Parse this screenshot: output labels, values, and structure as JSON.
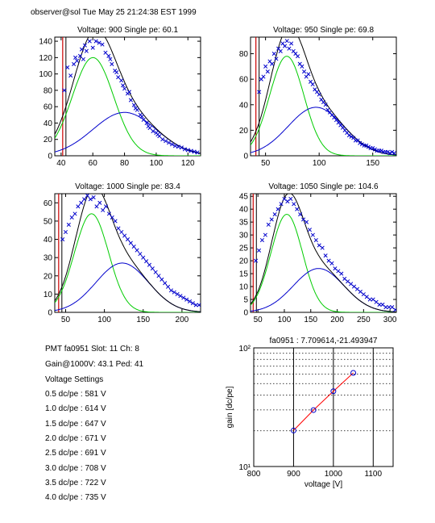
{
  "header": "observer@sol  Tue May 25 21:24:38 EST 1999",
  "colors": {
    "data": "#0000cc",
    "fit_total": "#000000",
    "fit_single": "#00cc00",
    "fit_double": "#0000cc",
    "pedestal": "#cc0000",
    "gain_line": "#ff0000",
    "gain_marker": "#0000cc"
  },
  "info": {
    "pmt_line": "PMT fa0951 Slot: 11 Ch: 8",
    "gain_line": "Gain@1000V: 43.1 Ped: 41",
    "settings_title": "Voltage Settings",
    "settings": [
      "0.5 dc/pe : 581 V",
      "1.0 dc/pe : 614 V",
      "1.5 dc/pe : 647 V",
      "2.0 dc/pe : 671 V",
      "2.5 dc/pe : 691 V",
      "3.0 dc/pe : 708 V",
      "3.5 dc/pe : 722 V",
      "4.0 dc/pe : 735 V"
    ]
  },
  "chart_data": [
    {
      "type": "scatter",
      "title": "Voltage: 900 Single pe: 60.1",
      "xlim": [
        36,
        128
      ],
      "ylim": [
        0,
        145
      ],
      "xticks": [
        40,
        60,
        80,
        100,
        120
      ],
      "yticks": [
        0,
        20,
        40,
        60,
        80,
        100,
        120,
        140
      ],
      "pedestal_x": 41,
      "fits": {
        "single": {
          "amp": 120,
          "mu": 60.1,
          "sigma": 13
        },
        "double": {
          "amp": 53,
          "mu": 80,
          "sigma": 20
        }
      },
      "series": [
        {
          "values": [
            [
              42,
              80
            ],
            [
              44,
              108
            ],
            [
              46,
              98
            ],
            [
              48,
              112
            ],
            [
              49,
              120
            ],
            [
              50,
              116
            ],
            [
              52,
              122
            ],
            [
              53,
              130
            ],
            [
              54,
              118
            ],
            [
              55,
              135
            ],
            [
              56,
              128
            ],
            [
              58,
              140
            ],
            [
              60,
              132
            ],
            [
              62,
              140
            ],
            [
              64,
              138
            ],
            [
              66,
              136
            ],
            [
              68,
              126
            ],
            [
              70,
              122
            ],
            [
              71,
              118
            ],
            [
              72,
              112
            ],
            [
              74,
              104
            ],
            [
              75,
              102
            ],
            [
              76,
              96
            ],
            [
              78,
              92
            ],
            [
              79,
              86
            ],
            [
              80,
              82
            ],
            [
              82,
              76
            ],
            [
              83,
              78
            ],
            [
              84,
              68
            ],
            [
              86,
              62
            ],
            [
              87,
              58
            ],
            [
              88,
              56
            ],
            [
              90,
              50
            ],
            [
              91,
              48
            ],
            [
              92,
              44
            ],
            [
              94,
              40
            ],
            [
              95,
              36
            ],
            [
              96,
              34
            ],
            [
              98,
              30
            ],
            [
              100,
              28
            ],
            [
              101,
              26
            ],
            [
              102,
              24
            ],
            [
              104,
              20
            ],
            [
              106,
              18
            ],
            [
              108,
              16
            ],
            [
              110,
              14
            ],
            [
              112,
              12
            ],
            [
              114,
              11
            ],
            [
              116,
              10
            ],
            [
              118,
              8
            ],
            [
              120,
              7
            ],
            [
              122,
              6
            ],
            [
              124,
              5
            ],
            [
              126,
              4
            ]
          ]
        }
      ]
    },
    {
      "type": "scatter",
      "title": "Voltage: 950 Single pe: 69.8",
      "xlim": [
        36,
        172
      ],
      "ylim": [
        0,
        93
      ],
      "xticks": [
        50,
        100,
        150
      ],
      "yticks": [
        0,
        20,
        40,
        60,
        80
      ],
      "pedestal_x": 41,
      "fits": {
        "single": {
          "amp": 78,
          "mu": 69.8,
          "sigma": 16
        },
        "double": {
          "amp": 38,
          "mu": 97,
          "sigma": 26
        }
      },
      "series": [
        {
          "values": [
            [
              44,
              50
            ],
            [
              46,
              60
            ],
            [
              48,
              62
            ],
            [
              50,
              70
            ],
            [
              52,
              66
            ],
            [
              54,
              74
            ],
            [
              56,
              72
            ],
            [
              58,
              80
            ],
            [
              60,
              76
            ],
            [
              62,
              84
            ],
            [
              64,
              82
            ],
            [
              66,
              88
            ],
            [
              68,
              86
            ],
            [
              70,
              90
            ],
            [
              72,
              84
            ],
            [
              74,
              88
            ],
            [
              76,
              82
            ],
            [
              78,
              80
            ],
            [
              80,
              78
            ],
            [
              82,
              72
            ],
            [
              84,
              70
            ],
            [
              86,
              66
            ],
            [
              88,
              62
            ],
            [
              90,
              64
            ],
            [
              92,
              58
            ],
            [
              94,
              56
            ],
            [
              96,
              52
            ],
            [
              98,
              50
            ],
            [
              100,
              48
            ],
            [
              102,
              44
            ],
            [
              104,
              42
            ],
            [
              106,
              40
            ],
            [
              108,
              36
            ],
            [
              110,
              34
            ],
            [
              112,
              32
            ],
            [
              114,
              30
            ],
            [
              116,
              28
            ],
            [
              118,
              26
            ],
            [
              120,
              24
            ],
            [
              122,
              22
            ],
            [
              124,
              20
            ],
            [
              126,
              18
            ],
            [
              128,
              16
            ],
            [
              130,
              15
            ],
            [
              132,
              14
            ],
            [
              134,
              12
            ],
            [
              136,
              12
            ],
            [
              138,
              10
            ],
            [
              140,
              9
            ],
            [
              142,
              8
            ],
            [
              144,
              8
            ],
            [
              146,
              7
            ],
            [
              148,
              6
            ],
            [
              150,
              6
            ],
            [
              152,
              5
            ],
            [
              154,
              4
            ],
            [
              156,
              4
            ],
            [
              158,
              4
            ],
            [
              160,
              3
            ],
            [
              162,
              3
            ],
            [
              164,
              3
            ],
            [
              166,
              2
            ],
            [
              168,
              3
            ],
            [
              170,
              2
            ]
          ]
        }
      ]
    },
    {
      "type": "scatter",
      "title": "Voltage: 1000 Single pe: 83.4",
      "xlim": [
        36,
        224
      ],
      "ylim": [
        0,
        65
      ],
      "xticks": [
        50,
        100,
        150,
        200
      ],
      "yticks": [
        0,
        10,
        20,
        30,
        40,
        50,
        60
      ],
      "pedestal_x": 41,
      "fits": {
        "single": {
          "amp": 54,
          "mu": 83.4,
          "sigma": 22
        },
        "double": {
          "amp": 27,
          "mu": 123,
          "sigma": 34
        }
      },
      "series": [
        {
          "values": [
            [
              46,
              40
            ],
            [
              50,
              44
            ],
            [
              54,
              48
            ],
            [
              58,
              52
            ],
            [
              62,
              54
            ],
            [
              66,
              58
            ],
            [
              70,
              60
            ],
            [
              74,
              62
            ],
            [
              78,
              64
            ],
            [
              82,
              62
            ],
            [
              86,
              63
            ],
            [
              90,
              58
            ],
            [
              94,
              60
            ],
            [
              98,
              56
            ],
            [
              102,
              58
            ],
            [
              106,
              54
            ],
            [
              110,
              52
            ],
            [
              114,
              50
            ],
            [
              118,
              46
            ],
            [
              122,
              44
            ],
            [
              126,
              42
            ],
            [
              130,
              40
            ],
            [
              134,
              38
            ],
            [
              138,
              36
            ],
            [
              142,
              34
            ],
            [
              146,
              32
            ],
            [
              150,
              30
            ],
            [
              154,
              28
            ],
            [
              158,
              26
            ],
            [
              162,
              24
            ],
            [
              166,
              22
            ],
            [
              170,
              20
            ],
            [
              174,
              18
            ],
            [
              178,
              16
            ],
            [
              182,
              14
            ],
            [
              186,
              12
            ],
            [
              190,
              11
            ],
            [
              194,
              10
            ],
            [
              198,
              9
            ],
            [
              202,
              8
            ],
            [
              206,
              7
            ],
            [
              210,
              6
            ],
            [
              214,
              5
            ],
            [
              218,
              4
            ],
            [
              222,
              4
            ]
          ]
        }
      ]
    },
    {
      "type": "scatter",
      "title": "Voltage: 1050 Single pe: 104.6",
      "xlim": [
        36,
        312
      ],
      "ylim": [
        0,
        46
      ],
      "xticks": [
        50,
        100,
        150,
        200,
        250,
        300
      ],
      "yticks": [
        0,
        5,
        10,
        15,
        20,
        25,
        30,
        35,
        40,
        45
      ],
      "pedestal_x": 41,
      "fits": {
        "single": {
          "amp": 38,
          "mu": 104.6,
          "sigma": 30
        },
        "double": {
          "amp": 17,
          "mu": 165,
          "sigma": 48
        }
      },
      "series": [
        {
          "values": [
            [
              46,
              20
            ],
            [
              52,
              24
            ],
            [
              58,
              28
            ],
            [
              64,
              30
            ],
            [
              70,
              34
            ],
            [
              76,
              36
            ],
            [
              82,
              38
            ],
            [
              88,
              40
            ],
            [
              94,
              42
            ],
            [
              100,
              44
            ],
            [
              106,
              43
            ],
            [
              112,
              44
            ],
            [
              118,
              42
            ],
            [
              124,
              40
            ],
            [
              130,
              38
            ],
            [
              136,
              36
            ],
            [
              142,
              35
            ],
            [
              148,
              32
            ],
            [
              154,
              30
            ],
            [
              160,
              28
            ],
            [
              166,
              26
            ],
            [
              172,
              25
            ],
            [
              178,
              22
            ],
            [
              184,
              20
            ],
            [
              190,
              19
            ],
            [
              196,
              17
            ],
            [
              202,
              16
            ],
            [
              208,
              15
            ],
            [
              214,
              13
            ],
            [
              220,
              12
            ],
            [
              226,
              11
            ],
            [
              232,
              10
            ],
            [
              238,
              9
            ],
            [
              244,
              8
            ],
            [
              250,
              7
            ],
            [
              256,
              6
            ],
            [
              262,
              5
            ],
            [
              268,
              5
            ],
            [
              274,
              4
            ],
            [
              280,
              3
            ],
            [
              286,
              3
            ],
            [
              292,
              2
            ],
            [
              298,
              2
            ],
            [
              304,
              2
            ],
            [
              310,
              1
            ]
          ]
        }
      ]
    },
    {
      "type": "line",
      "title": "fa0951 : 7.709614,-21.493947",
      "xlabel": "voltage [V]",
      "ylabel": "gain [dc/pe]",
      "xlim": [
        800,
        1150
      ],
      "ylim": [
        10,
        100
      ],
      "yscale": "log",
      "xticks": [
        800,
        900,
        1000,
        1100
      ],
      "yticks": [
        10,
        100
      ],
      "ytick_labels": [
        "10¹",
        "10²"
      ],
      "grid": true,
      "series": [
        {
          "x": [
            900,
            950,
            1000,
            1050
          ],
          "values": [
            20.1,
            29.9,
            43.1,
            61.5
          ]
        }
      ]
    }
  ]
}
